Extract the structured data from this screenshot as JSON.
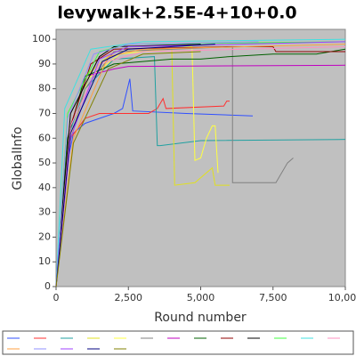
{
  "chart_data": {
    "type": "line",
    "title": "levywalk+2.5E-4+10+0.0",
    "xlabel": "Round number",
    "ylabel": "GlobalInfo",
    "xlim": [
      0,
      10000
    ],
    "ylim": [
      0,
      104
    ],
    "xticks": [
      0,
      {
        "value": 2500,
        "label": "2,500"
      },
      {
        "value": 5000,
        "label": "5,000"
      },
      {
        "value": 7500,
        "label": "7,500"
      },
      {
        "value": 10000,
        "label": "10,000"
      }
    ],
    "yticks": [
      0,
      10,
      20,
      30,
      40,
      50,
      60,
      70,
      80,
      90,
      100
    ],
    "grid": false,
    "background": "#c0c0c0",
    "series": [
      {
        "color": "#3050ff",
        "x": [
          0,
          300,
          600,
          1000,
          2000,
          2300,
          2550,
          2650,
          4500,
          6800
        ],
        "values": [
          0,
          45,
          62,
          66,
          70,
          72,
          84,
          71,
          70,
          69
        ]
      },
      {
        "color": "#ff3030",
        "x": [
          0,
          500,
          1000,
          1500,
          2500,
          3200,
          3500,
          3700,
          3800,
          5800,
          5900,
          6000
        ],
        "values": [
          0,
          60,
          68,
          70,
          70,
          70,
          72,
          76,
          72,
          73,
          75,
          75
        ]
      },
      {
        "color": "#20a0a0",
        "x": [
          0,
          400,
          1000,
          2000,
          3400,
          3500,
          3600,
          5000,
          10000
        ],
        "values": [
          0,
          60,
          80,
          92,
          93,
          57,
          57,
          59,
          59.5
        ]
      },
      {
        "color": "#e0e020",
        "x": [
          0,
          400,
          1000,
          2000,
          4000,
          4100,
          4800,
          5400,
          5500,
          6000
        ],
        "values": [
          0,
          60,
          85,
          95,
          96,
          41,
          42,
          48,
          41,
          41
        ]
      },
      {
        "color": "#ffff40",
        "x": [
          0,
          450,
          1100,
          2200,
          4700,
          4800,
          5000,
          5200,
          5400,
          5500,
          5600
        ],
        "values": [
          0,
          58,
          84,
          94,
          97,
          51,
          52,
          60,
          65,
          65,
          46
        ]
      },
      {
        "color": "#808080",
        "x": [
          0,
          400,
          1000,
          2000,
          6100,
          6100,
          7600,
          8000,
          8200
        ],
        "values": [
          0,
          55,
          80,
          95,
          97,
          42,
          42,
          50,
          52
        ]
      },
      {
        "color": "#c000c0",
        "x": [
          0,
          400,
          1000,
          2000,
          2500,
          10000
        ],
        "values": [
          0,
          60,
          85,
          88,
          89,
          89.5
        ]
      },
      {
        "color": "#006000",
        "x": [
          0,
          400,
          1000,
          2000,
          4000,
          5000,
          6000,
          7500,
          9000,
          10000
        ],
        "values": [
          0,
          60,
          85,
          90,
          92,
          92,
          93,
          94,
          94,
          96
        ]
      },
      {
        "color": "#900000",
        "x": [
          0,
          500,
          1200,
          2000,
          6000,
          7500,
          7600,
          10000
        ],
        "values": [
          0,
          65,
          90,
          96,
          97,
          97,
          95,
          95
        ]
      },
      {
        "color": "#000000",
        "x": [
          0,
          500,
          1500,
          2000,
          5000
        ],
        "values": [
          0,
          70,
          93,
          97,
          98
        ]
      },
      {
        "color": "#40ff40",
        "x": [
          0,
          400,
          1500,
          2500,
          10000
        ],
        "values": [
          0,
          70,
          95,
          98,
          99
        ]
      },
      {
        "color": "#40e0e0",
        "x": [
          0,
          300,
          1200,
          3000,
          10000
        ],
        "values": [
          0,
          72,
          96,
          99,
          100
        ]
      },
      {
        "color": "#ff90c0",
        "x": [
          0,
          500,
          1500,
          3000,
          10000
        ],
        "values": [
          0,
          65,
          90,
          95,
          97
        ]
      },
      {
        "color": "#ffa040",
        "x": [
          0,
          600,
          1800,
          3000,
          10000
        ],
        "values": [
          0,
          60,
          93,
          96,
          98
        ]
      },
      {
        "color": "#9090ff",
        "x": [
          0,
          400,
          1300,
          2500,
          7000
        ],
        "values": [
          0,
          68,
          94,
          98,
          99
        ]
      },
      {
        "color": "#a040ff",
        "x": [
          0,
          500,
          1500,
          2500,
          10000
        ],
        "values": [
          0,
          60,
          92,
          97,
          99
        ]
      },
      {
        "color": "#000080",
        "x": [
          0,
          500,
          1600,
          2500,
          5500
        ],
        "values": [
          0,
          62,
          91,
          96,
          98
        ]
      },
      {
        "color": "#808000",
        "x": [
          0,
          600,
          1800,
          3000,
          5000
        ],
        "values": [
          0,
          58,
          88,
          94,
          95
        ]
      }
    ]
  }
}
